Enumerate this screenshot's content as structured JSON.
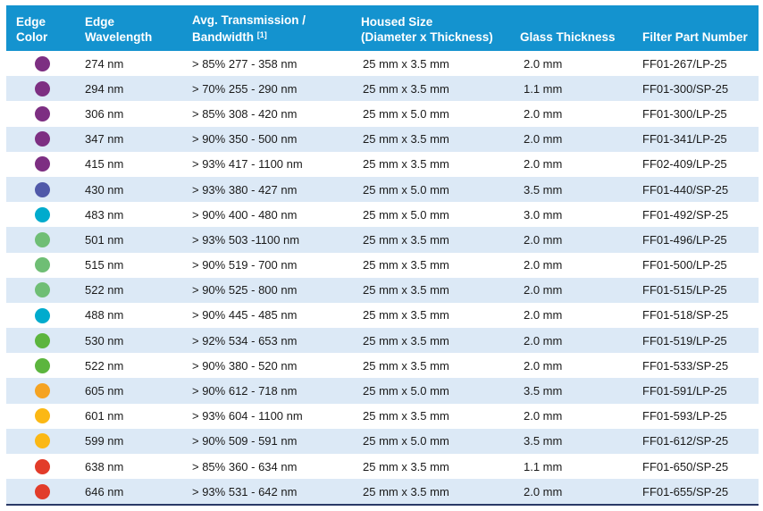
{
  "headers": {
    "edge_color": {
      "line1": "Edge",
      "line2": "Color"
    },
    "edge_wavelength": {
      "line1": "Edge",
      "line2": "Wavelength"
    },
    "transmission": {
      "line1": "Avg. Transmission /",
      "line2": "Bandwidth ",
      "sup": "[1]"
    },
    "housed_size": {
      "line1": "Housed Size",
      "line2": "(Diameter x Thickness)"
    },
    "glass_thickness": {
      "label": "Glass Thickness"
    },
    "part_number": {
      "label": "Filter Part Number"
    }
  },
  "rows": [
    {
      "color": "purple",
      "wavelength": "274 nm",
      "transmission": "> 85% 277 - 358 nm",
      "housed_size": "25 mm x 3.5 mm",
      "glass_thickness": "2.0 mm",
      "part_number": "FF01-267/LP-25"
    },
    {
      "color": "purple",
      "wavelength": "294 nm",
      "transmission": "> 70% 255 - 290 nm",
      "housed_size": "25 mm x 3.5 mm",
      "glass_thickness": "1.1 mm",
      "part_number": "FF01-300/SP-25"
    },
    {
      "color": "purple",
      "wavelength": "306 nm",
      "transmission": "> 85% 308 - 420 nm",
      "housed_size": "25 mm x 5.0 mm",
      "glass_thickness": "2.0 mm",
      "part_number": "FF01-300/LP-25"
    },
    {
      "color": "purple",
      "wavelength": "347 nm",
      "transmission": "> 90% 350 - 500 nm",
      "housed_size": "25 mm x 3.5 mm",
      "glass_thickness": "2.0 mm",
      "part_number": "FF01-341/LP-25"
    },
    {
      "color": "purple",
      "wavelength": "415 nm",
      "transmission": "> 93% 417 - 1100 nm",
      "housed_size": "25 mm x 3.5 mm",
      "glass_thickness": "2.0 mm",
      "part_number": "FF02-409/LP-25"
    },
    {
      "color": "blue_violet",
      "wavelength": "430 nm",
      "transmission": "> 93% 380 - 427 nm",
      "housed_size": "25 mm x 5.0 mm",
      "glass_thickness": "3.5 mm",
      "part_number": "FF01-440/SP-25"
    },
    {
      "color": "cyan",
      "wavelength": "483 nm",
      "transmission": "> 90% 400 - 480 nm",
      "housed_size": "25 mm x 5.0 mm",
      "glass_thickness": "3.0 mm",
      "part_number": "FF01-492/SP-25"
    },
    {
      "color": "light_green",
      "wavelength": "501 nm",
      "transmission": "> 93% 503 -1100 nm",
      "housed_size": "25 mm x 3.5 mm",
      "glass_thickness": "2.0 mm",
      "part_number": "FF01-496/LP-25"
    },
    {
      "color": "light_green",
      "wavelength": "515 nm",
      "transmission": "> 90% 519 - 700 nm",
      "housed_size": "25 mm x 3.5 mm",
      "glass_thickness": "2.0 mm",
      "part_number": "FF01-500/LP-25"
    },
    {
      "color": "light_green",
      "wavelength": "522 nm",
      "transmission": "> 90% 525 - 800 nm",
      "housed_size": "25 mm x 3.5 mm",
      "glass_thickness": "2.0 mm",
      "part_number": "FF01-515/LP-25"
    },
    {
      "color": "cyan",
      "wavelength": "488 nm",
      "transmission": "> 90% 445 - 485 nm",
      "housed_size": "25 mm x 3.5 mm",
      "glass_thickness": "2.0 mm",
      "part_number": "FF01-518/SP-25"
    },
    {
      "color": "green",
      "wavelength": "530 nm",
      "transmission": "> 92% 534 - 653 nm",
      "housed_size": "25 mm x 3.5 mm",
      "glass_thickness": "2.0 mm",
      "part_number": "FF01-519/LP-25"
    },
    {
      "color": "green",
      "wavelength": "522 nm",
      "transmission": "> 90% 380 - 520 nm",
      "housed_size": "25 mm x 3.5 mm",
      "glass_thickness": "2.0 mm",
      "part_number": "FF01-533/SP-25"
    },
    {
      "color": "orange",
      "wavelength": "605 nm",
      "transmission": "> 90% 612 - 718 nm",
      "housed_size": "25 mm x 5.0 mm",
      "glass_thickness": "3.5 mm",
      "part_number": "FF01-591/LP-25"
    },
    {
      "color": "gold",
      "wavelength": "601 nm",
      "transmission": "> 93% 604 - 1100 nm",
      "housed_size": "25 mm x 3.5 mm",
      "glass_thickness": "2.0 mm",
      "part_number": "FF01-593/LP-25"
    },
    {
      "color": "gold",
      "wavelength": "599 nm",
      "transmission": "> 90% 509 - 591 nm",
      "housed_size": "25 mm x 5.0 mm",
      "glass_thickness": "3.5 mm",
      "part_number": "FF01-612/SP-25"
    },
    {
      "color": "red",
      "wavelength": "638 nm",
      "transmission": "> 85% 360 - 634 nm",
      "housed_size": "25 mm x 3.5 mm",
      "glass_thickness": "1.1 mm",
      "part_number": "FF01-650/SP-25"
    },
    {
      "color": "red",
      "wavelength": "646 nm",
      "transmission": "> 93% 531 - 642 nm",
      "housed_size": "25 mm x 3.5 mm",
      "glass_thickness": "2.0 mm",
      "part_number": "FF01-655/SP-25"
    }
  ],
  "colors": {
    "header_bg": "#1493cf",
    "header_text": "#ffffff",
    "stripe_bg": "#dce9f6",
    "row_bg": "#ffffff",
    "bottom_border": "#2b3a67",
    "body_text": "#1a1a1a",
    "dot_palette": {
      "purple": "#7d2f82",
      "blue_violet": "#5059a9",
      "cyan": "#00abcd",
      "light_green": "#6fbe75",
      "green": "#5cb53e",
      "orange": "#f5a322",
      "gold": "#fbb815",
      "red": "#e23c2a"
    }
  }
}
